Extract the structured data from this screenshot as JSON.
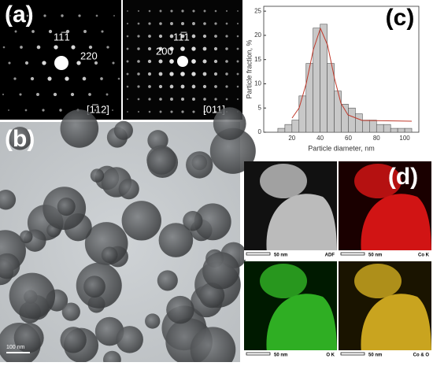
{
  "panels": {
    "a": {
      "label": "(a)",
      "left": {
        "index_1": "11̅1",
        "index_2": "220",
        "zone": "[1̅12]"
      },
      "right": {
        "index_1": "11̅1",
        "index_2": "200",
        "zone": "[011]"
      }
    },
    "b": {
      "label": "(b)",
      "scale_bar": "100 nm"
    },
    "c": {
      "label": "(c)",
      "chart_data": {
        "type": "histogram",
        "x_label": "Particle diameter, nm",
        "y_label": "Particle fraction, %",
        "bins": [
          10,
          15,
          20,
          25,
          30,
          35,
          40,
          45,
          50,
          55,
          60,
          65,
          70,
          75,
          80,
          85,
          90,
          95,
          100,
          105
        ],
        "values": [
          0.8,
          1.6,
          2.5,
          7.5,
          14.2,
          21.5,
          22.3,
          14.2,
          8.5,
          5.8,
          5,
          3.8,
          2.5,
          2.5,
          1.6,
          1.6,
          0.8,
          0.8,
          0.8
        ],
        "color": "#c8c8c8",
        "xlim": [
          0,
          110
        ],
        "ylim": [
          0,
          26
        ],
        "xticks": [
          20,
          40,
          60,
          80,
          100
        ],
        "yticks": [
          0,
          5,
          10,
          15,
          20,
          25
        ]
      }
    },
    "d": {
      "label": "(d)",
      "maps": [
        {
          "label": "ADF",
          "scale_bar": "50 nm"
        },
        {
          "label": "Co K",
          "scale_bar": "50 nm"
        },
        {
          "label": "O K",
          "scale_bar": "50 nm"
        },
        {
          "label": "Co & O",
          "scale_bar": "50 nm"
        }
      ]
    }
  }
}
